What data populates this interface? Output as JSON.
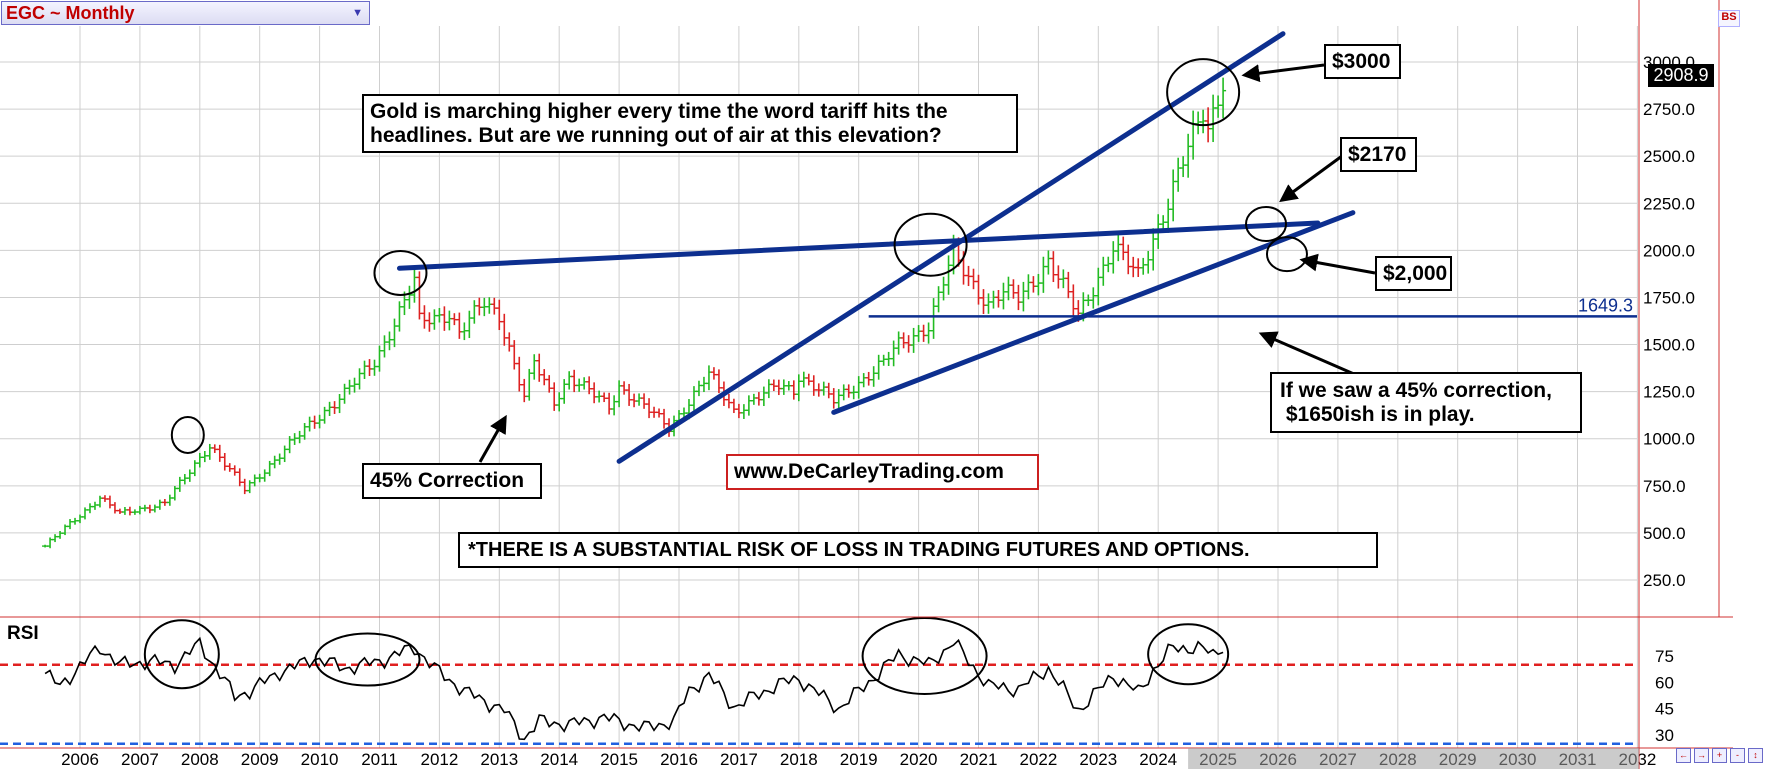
{
  "header": {
    "symbol_title": "EGC ~ Monthly"
  },
  "rsi_panel": {
    "title": "RSI",
    "levels": [
      "75",
      "60",
      "45",
      "30"
    ]
  },
  "price_axis": {
    "ticks": [
      "3000.0",
      "2750.0",
      "2500.0",
      "2250.0",
      "2000.0",
      "1750.0",
      "1500.0",
      "1250.0",
      "1000.0",
      "750.0",
      "500.0",
      "250.0"
    ],
    "last_price": "2908.9",
    "hline_value": 1649.3,
    "hline_label": "1649.3"
  },
  "time_axis": {
    "years": [
      "2006",
      "2007",
      "2008",
      "2009",
      "2010",
      "2011",
      "2012",
      "2013",
      "2014",
      "2015",
      "2016",
      "2017",
      "2018",
      "2019",
      "2020",
      "2021",
      "2022",
      "2023",
      "2024",
      "2025",
      "2026",
      "2027",
      "2028",
      "2029",
      "2030",
      "2031",
      "2032"
    ]
  },
  "annotations": {
    "main_line1": "Gold is marching higher every time the word tariff hits the",
    "main_line2": "headlines. But are we running out of air at this elevation?",
    "correction": "45% Correction",
    "website": "www.DeCarleyTrading.com",
    "risk": "*THERE IS A SUBSTANTIAL RISK OF LOSS IN TRADING FUTURES AND OPTIONS.",
    "p3000": "$3000",
    "p2170": "$2170",
    "p2000": "$2,000",
    "corr_line1": "If we saw a 45% correction,",
    "corr_line2": " $1650ish is in play."
  },
  "side_tab": "BS",
  "nav_buttons": [
    "←",
    "→",
    "+",
    "-",
    "↕"
  ],
  "colors": {
    "up_bar": "#22bb22",
    "down_bar": "#dd2222",
    "trendline": "#0d2f8f",
    "grid": "#cfcfcf",
    "rsi_upper": "#e02020",
    "rsi_lower": "#2060e0",
    "future_axis": "#a0a0a0"
  },
  "chart_data": {
    "type": "ohlc",
    "title": "EGC ~ Monthly",
    "y_axis_price": [
      0,
      3200
    ],
    "rsi_range": [
      22,
      92
    ],
    "rsi_thresholds": [
      70,
      25
    ],
    "grid": true,
    "price_anchors": [
      [
        "2005-06",
        430
      ],
      [
        "2006-05",
        690
      ],
      [
        "2006-09",
        600
      ],
      [
        "2007-06",
        660
      ],
      [
        "2007-10",
        790
      ],
      [
        "2008-03",
        970
      ],
      [
        "2008-10",
        730
      ],
      [
        "2009-12",
        1100
      ],
      [
        "2010-06",
        1240
      ],
      [
        "2010-12",
        1410
      ],
      [
        "2011-08",
        1830
      ],
      [
        "2011-09",
        1620
      ],
      [
        "2012-03",
        1670
      ],
      [
        "2012-05",
        1560
      ],
      [
        "2012-10",
        1720
      ],
      [
        "2013-01",
        1660
      ],
      [
        "2013-06",
        1220
      ],
      [
        "2013-08",
        1400
      ],
      [
        "2013-12",
        1200
      ],
      [
        "2014-03",
        1330
      ],
      [
        "2014-11",
        1170
      ],
      [
        "2015-01",
        1280
      ],
      [
        "2015-11",
        1060
      ],
      [
        "2016-07",
        1340
      ],
      [
        "2016-12",
        1150
      ],
      [
        "2017-09",
        1280
      ],
      [
        "2017-12",
        1260
      ],
      [
        "2018-01",
        1340
      ],
      [
        "2018-08",
        1200
      ],
      [
        "2019-06",
        1400
      ],
      [
        "2019-09",
        1500
      ],
      [
        "2020-03",
        1600
      ],
      [
        "2020-08",
        1980
      ],
      [
        "2021-03",
        1710
      ],
      [
        "2021-06",
        1770
      ],
      [
        "2021-09",
        1750
      ],
      [
        "2022-03",
        1940
      ],
      [
        "2022-09",
        1660
      ],
      [
        "2023-04",
        2010
      ],
      [
        "2023-09",
        1870
      ],
      [
        "2023-12",
        2070
      ],
      [
        "2024-03",
        2250
      ],
      [
        "2024-10",
        2750
      ],
      [
        "2024-11",
        2660
      ],
      [
        "2025-02",
        2908.9
      ]
    ],
    "rsi_anchors": [
      [
        "2005-06",
        65
      ],
      [
        "2005-09",
        58
      ],
      [
        "2006-05",
        80
      ],
      [
        "2006-09",
        70
      ],
      [
        "2007-03",
        72
      ],
      [
        "2007-08",
        70
      ],
      [
        "2008-01",
        82
      ],
      [
        "2008-08",
        52
      ],
      [
        "2008-11",
        55
      ],
      [
        "2009-05",
        66
      ],
      [
        "2009-09",
        70
      ],
      [
        "2009-12",
        74
      ],
      [
        "2010-06",
        68
      ],
      [
        "2011-01",
        72
      ],
      [
        "2011-08",
        80
      ],
      [
        "2011-12",
        68
      ],
      [
        "2012-06",
        55
      ],
      [
        "2013-02",
        44
      ],
      [
        "2013-06",
        28
      ],
      [
        "2013-09",
        38
      ],
      [
        "2014-03",
        36
      ],
      [
        "2014-10",
        40
      ],
      [
        "2015-06",
        34
      ],
      [
        "2015-12",
        38
      ],
      [
        "2016-03",
        55
      ],
      [
        "2016-07",
        64
      ],
      [
        "2016-12",
        46
      ],
      [
        "2017-09",
        59
      ],
      [
        "2018-01",
        62
      ],
      [
        "2018-09",
        45
      ],
      [
        "2019-03",
        60
      ],
      [
        "2019-09",
        76
      ],
      [
        "2020-03",
        70
      ],
      [
        "2020-08",
        83
      ],
      [
        "2021-03",
        58
      ],
      [
        "2021-09",
        56
      ],
      [
        "2022-03",
        68
      ],
      [
        "2022-09",
        44
      ],
      [
        "2023-04",
        64
      ],
      [
        "2023-09",
        54
      ],
      [
        "2023-12",
        67
      ],
      [
        "2024-04",
        80
      ],
      [
        "2024-10",
        79
      ],
      [
        "2024-12",
        76
      ],
      [
        "2025-02",
        81
      ]
    ],
    "trendlines": [
      {
        "from": [
          "2015-01",
          880
        ],
        "to": [
          "2026-02",
          3150
        ]
      },
      {
        "from": [
          "2011-05",
          1905
        ],
        "to": [
          "2026-09",
          2145
        ]
      },
      {
        "from": [
          "2018-08",
          1140
        ],
        "to": [
          "2027-04",
          2200
        ]
      }
    ],
    "horizontal_line": {
      "from": "2019-03",
      "value": 1649.3
    }
  }
}
